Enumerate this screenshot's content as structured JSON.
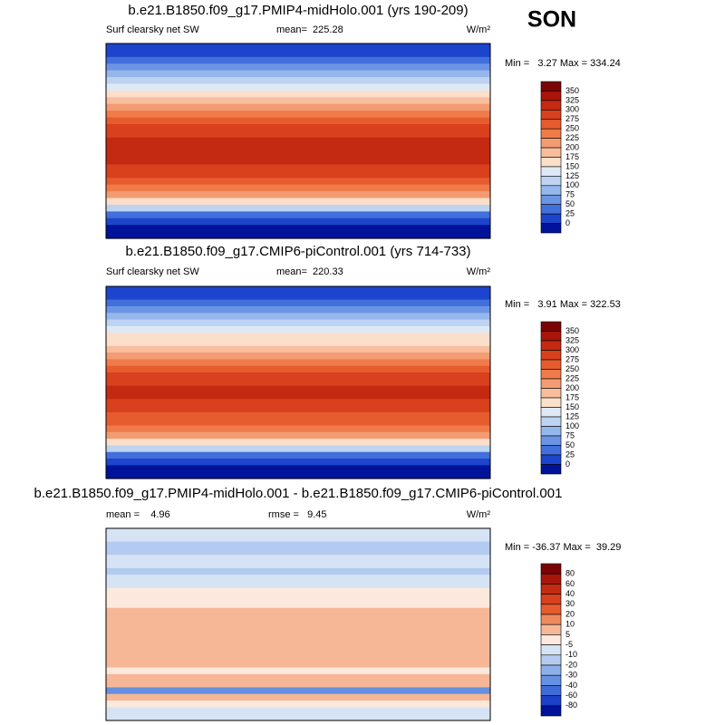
{
  "season": "SON",
  "panels": [
    {
      "title": "b.e21.B1850.f09_g17.PMIP4-midHolo.001 (yrs 190-209)",
      "left_label": "Surf clearsky net SW",
      "center_label": "mean=  225.28",
      "units": "W/m²",
      "minmax": "Min =   3.27 Max = 334.24",
      "colorbar": {
        "levels": [
          350,
          325,
          300,
          275,
          250,
          225,
          200,
          175,
          150,
          125,
          100,
          75,
          50,
          25,
          0
        ],
        "colors": [
          "#7a0403",
          "#a8150b",
          "#c42a12",
          "#d9401d",
          "#e65c2e",
          "#ef7b4b",
          "#f39b72",
          "#f7bd9d",
          "#fbdfca",
          "#dfe9f6",
          "#bdd3f1",
          "#96b7ec",
          "#6c94e4",
          "#416fdb",
          "#1d44cc",
          "#00129a"
        ]
      }
    },
    {
      "title": "b.e21.B1850.f09_g17.CMIP6-piControl.001 (yrs 714-733)",
      "left_label": "Surf clearsky net SW",
      "center_label": "mean=  220.33",
      "units": "W/m²",
      "minmax": "Min =   3.91 Max = 322.53",
      "colorbar": {
        "levels": [
          350,
          325,
          300,
          275,
          250,
          225,
          200,
          175,
          150,
          125,
          100,
          75,
          50,
          25,
          0
        ],
        "colors": [
          "#7a0403",
          "#a8150b",
          "#c42a12",
          "#d9401d",
          "#e65c2e",
          "#ef7b4b",
          "#f39b72",
          "#f7bd9d",
          "#fbdfca",
          "#dfe9f6",
          "#bdd3f1",
          "#96b7ec",
          "#6c94e4",
          "#416fdb",
          "#1d44cc",
          "#00129a"
        ]
      }
    },
    {
      "title": "b.e21.B1850.f09_g17.PMIP4-midHolo.001 - b.e21.B1850.f09_g17.CMIP6-piControl.001",
      "left_label": "mean =    4.96",
      "center_label": "rmse =   9.45",
      "units": "W/m²",
      "minmax": "Min = -36.37 Max =  39.29",
      "colorbar": {
        "levels": [
          80,
          60,
          40,
          30,
          20,
          10,
          5,
          -5,
          -10,
          -20,
          -30,
          -40,
          -60,
          -80
        ],
        "colors": [
          "#7a0403",
          "#a8150b",
          "#c42a12",
          "#d9401d",
          "#e65c2e",
          "#ef8a5c",
          "#f6b797",
          "#fce8dc",
          "#d6e3f5",
          "#b3cbf0",
          "#8eb0ea",
          "#6690e2",
          "#3f6bd8",
          "#1c40c6",
          "#00129a"
        ]
      }
    }
  ]
}
